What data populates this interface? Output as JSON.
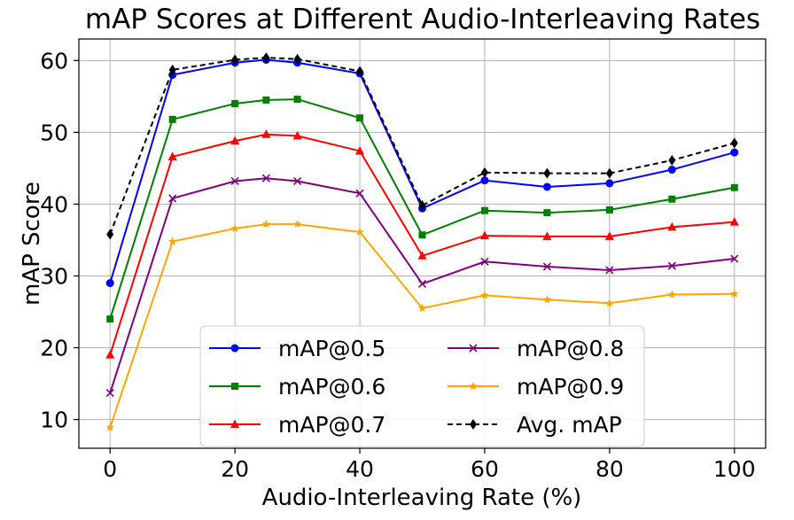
{
  "chart_data": {
    "type": "line",
    "title": "mAP Scores at Different Audio-Interleaving Rates",
    "xlabel": "Audio-Interleaving Rate (%)",
    "ylabel": "mAP Score",
    "xlim": [
      -5,
      105
    ],
    "ylim": [
      6,
      63
    ],
    "x_ticks": [
      0,
      20,
      40,
      60,
      80,
      100
    ],
    "y_ticks": [
      10,
      20,
      30,
      40,
      50,
      60
    ],
    "grid": true,
    "legend_position": "bottom-center",
    "legend_columns": 2,
    "x": [
      0,
      10,
      20,
      25,
      30,
      40,
      50,
      60,
      70,
      80,
      90,
      100
    ],
    "series": [
      {
        "name": "mAP@0.5",
        "color": "#0000ff",
        "marker": "circle",
        "dashed": false,
        "values": [
          29.0,
          58.0,
          59.7,
          60.1,
          59.7,
          58.2,
          39.4,
          43.3,
          42.4,
          42.9,
          44.8,
          47.2
        ]
      },
      {
        "name": "mAP@0.6",
        "color": "#008000",
        "marker": "square",
        "dashed": false,
        "values": [
          24.0,
          51.8,
          54.0,
          54.5,
          54.6,
          52.0,
          35.7,
          39.1,
          38.8,
          39.2,
          40.7,
          42.3
        ]
      },
      {
        "name": "mAP@0.7",
        "color": "#ff0000",
        "marker": "triangle",
        "dashed": false,
        "values": [
          19.0,
          46.6,
          48.8,
          49.7,
          49.5,
          47.4,
          32.8,
          35.6,
          35.5,
          35.5,
          36.8,
          37.5
        ]
      },
      {
        "name": "mAP@0.8",
        "color": "#800080",
        "marker": "x",
        "dashed": false,
        "values": [
          13.7,
          40.8,
          43.2,
          43.6,
          43.2,
          41.5,
          28.9,
          32.0,
          31.3,
          30.8,
          31.4,
          32.4
        ]
      },
      {
        "name": "mAP@0.9",
        "color": "#ffa500",
        "marker": "star",
        "dashed": false,
        "values": [
          8.9,
          34.8,
          36.6,
          37.2,
          37.2,
          36.1,
          25.5,
          27.3,
          26.7,
          26.2,
          27.4,
          27.5
        ]
      },
      {
        "name": "Avg. mAP",
        "color": "#000000",
        "marker": "diamond",
        "dashed": true,
        "values": [
          35.8,
          58.7,
          60.1,
          60.4,
          60.2,
          58.5,
          39.8,
          44.4,
          44.3,
          44.3,
          46.1,
          48.5
        ]
      }
    ]
  }
}
